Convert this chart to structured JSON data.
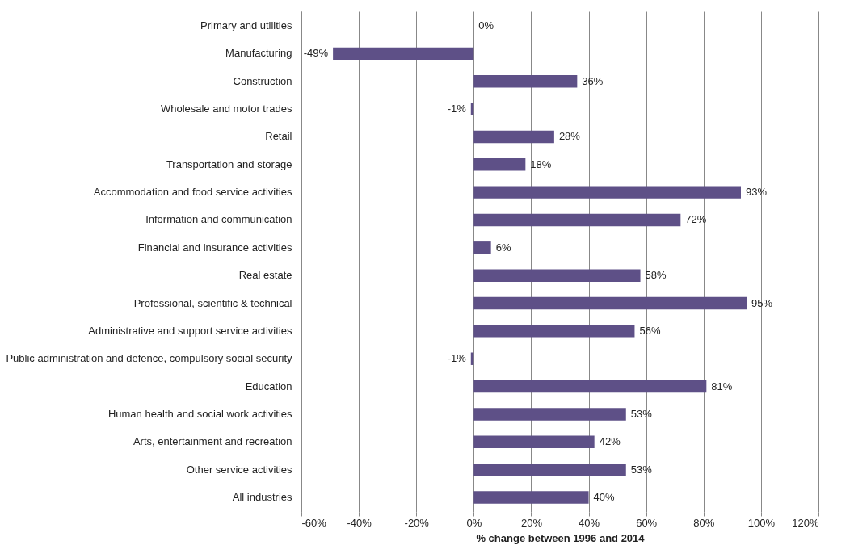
{
  "chart_data": {
    "type": "bar",
    "orientation": "horizontal",
    "xlabel": "% change between 1996 and 2014",
    "categories": [
      "Primary and utilities",
      "Manufacturing",
      "Construction",
      "Wholesale and motor trades",
      "Retail",
      "Transportation and storage",
      "Accommodation and food service activities",
      "Information and communication",
      "Financial and insurance activities",
      "Real estate",
      "Professional, scientific & technical",
      "Administrative and support service activities",
      "Public administration and defence, compulsory social security",
      "Education",
      "Human health and social work activities",
      "Arts, entertainment and recreation",
      "Other service activities",
      "All industries"
    ],
    "values": [
      0,
      -49,
      36,
      -1,
      28,
      18,
      93,
      72,
      6,
      58,
      95,
      56,
      -1,
      81,
      53,
      42,
      53,
      40
    ],
    "value_labels": [
      "0%",
      "-49%",
      "36%",
      "-1%",
      "28%",
      "18%",
      "93%",
      "72%",
      "6%",
      "58%",
      "95%",
      "56%",
      "-1%",
      "81%",
      "53%",
      "42%",
      "53%",
      "40%"
    ],
    "color": "#5e5087",
    "xlim": [
      -60,
      120
    ],
    "xticks": [
      {
        "value": -60,
        "label": "-60%"
      },
      {
        "value": -40,
        "label": "-40%"
      },
      {
        "value": -20,
        "label": "-20%"
      },
      {
        "value": 0,
        "label": "0%"
      },
      {
        "value": 20,
        "label": "20%"
      },
      {
        "value": 40,
        "label": "40%"
      },
      {
        "value": 60,
        "label": "60%"
      },
      {
        "value": 80,
        "label": "80%"
      },
      {
        "value": 100,
        "label": "100%"
      },
      {
        "value": 120,
        "label": "120%"
      }
    ],
    "grid": "x"
  }
}
